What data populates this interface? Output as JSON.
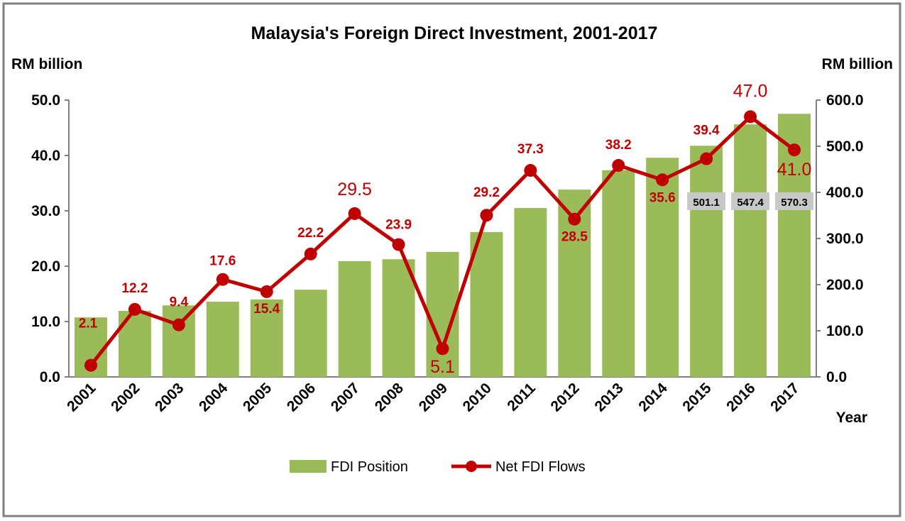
{
  "chart_data": {
    "type": "bar+line",
    "title": "Malaysia's Foreign Direct Investment, 2001-2017",
    "ylabel_left": "RM billion",
    "ylabel_right": "RM billion",
    "xlabel": "Year",
    "categories": [
      "2001",
      "2002",
      "2003",
      "2004",
      "2005",
      "2006",
      "2007",
      "2008",
      "2009",
      "2010",
      "2011",
      "2012",
      "2013",
      "2014",
      "2015",
      "2016",
      "2017"
    ],
    "ylim_left": [
      0,
      50
    ],
    "ylim_right": [
      0,
      600
    ],
    "left_ticks": [
      "0.0",
      "10.0",
      "20.0",
      "30.0",
      "40.0",
      "50.0"
    ],
    "right_ticks": [
      "0.0",
      "100.0",
      "200.0",
      "300.0",
      "400.0",
      "500.0",
      "600.0"
    ],
    "series": [
      {
        "name": "FDI Position",
        "type": "bar",
        "axis": "right",
        "color": "#9bbb59",
        "values": [
          129,
          143,
          155,
          163,
          168,
          189,
          251,
          255,
          271,
          314,
          366,
          406,
          448,
          475,
          501.1,
          547.4,
          570.3
        ],
        "data_labels": {
          "14": "501.1",
          "15": "547.4",
          "16": "570.3"
        }
      },
      {
        "name": "Net FDI Flows",
        "type": "line",
        "axis": "left",
        "color": "#c00000",
        "values": [
          2.1,
          12.2,
          9.4,
          17.6,
          15.4,
          22.2,
          29.5,
          23.9,
          5.1,
          29.2,
          37.3,
          28.5,
          38.2,
          35.6,
          39.4,
          47.0,
          41.0
        ],
        "data_labels": [
          "2.1",
          "12.2",
          "9.4",
          "17.6",
          "15.4",
          "22.2",
          "29.5",
          "23.9",
          "5.1",
          "29.2",
          "37.3",
          "28.5",
          "38.2",
          "35.6",
          "39.4",
          "47.0",
          "41.0"
        ]
      }
    ],
    "grid": false,
    "legend": "bottom-center"
  }
}
